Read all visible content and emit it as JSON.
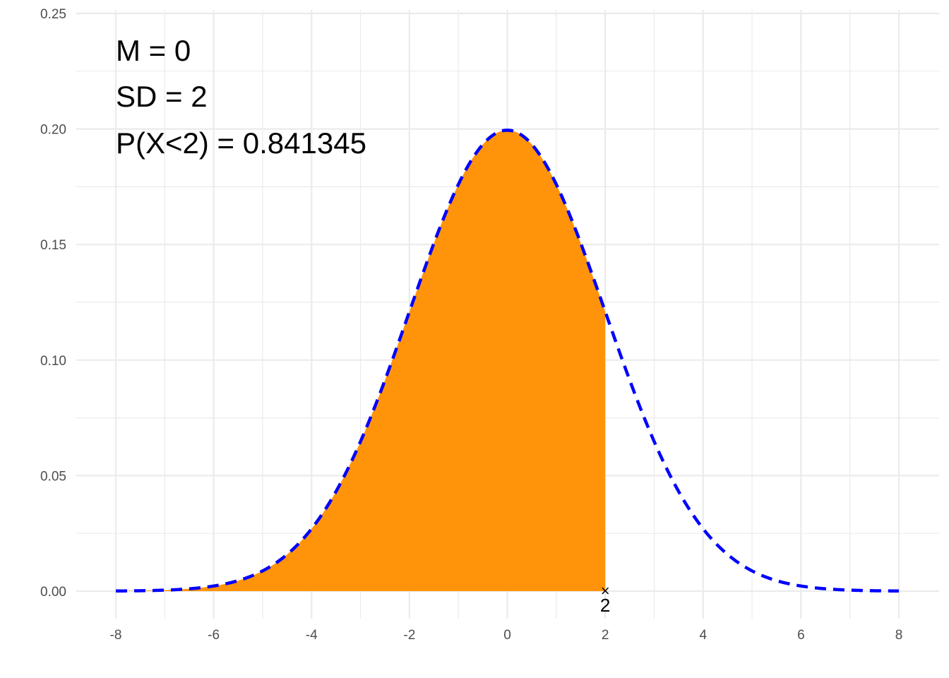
{
  "chart_data": {
    "type": "area",
    "title": "",
    "xlabel": "",
    "ylabel": "",
    "distribution": "normal",
    "mean": 0,
    "sd": 2,
    "cutoff": 2,
    "cutoff_label": "2",
    "xlim": [
      -8,
      8
    ],
    "ylim": [
      0,
      0.25
    ],
    "x_ticks": [
      "-8",
      "-6",
      "-4",
      "-2",
      "0",
      "2",
      "4",
      "6",
      "8"
    ],
    "x_tick_values": [
      -8,
      -6,
      -4,
      -2,
      0,
      2,
      4,
      6,
      8
    ],
    "y_ticks": [
      "0.00",
      "0.05",
      "0.10",
      "0.15",
      "0.20",
      "0.25"
    ],
    "y_tick_values": [
      0,
      0.05,
      0.1,
      0.15,
      0.2,
      0.25
    ],
    "grid": true,
    "annotations": [
      "M = 0",
      "SD = 2",
      "P(X<2) = 0.841345"
    ],
    "colors": {
      "fill": "#FF940A",
      "curve": "#0000FF",
      "grid": "#EBEBEB",
      "marker": "#000000"
    },
    "curve_style": "dashed",
    "shaded_region": "x < 2"
  }
}
